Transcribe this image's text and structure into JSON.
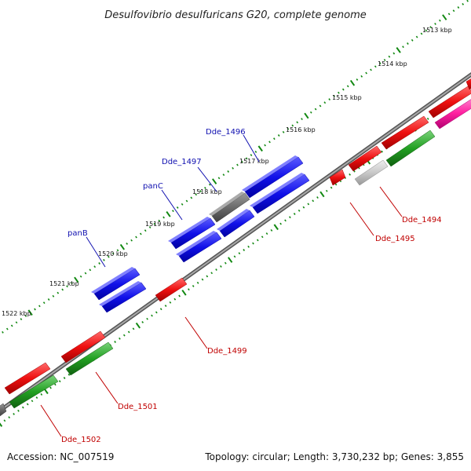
{
  "title": "Desulfovibrio desulfuricans G20, complete genome",
  "footer": {
    "accession": "Accession: NC_007519",
    "topology": "Topology: circular; Length: 3,730,232 bp; Genes: 3,855"
  },
  "scale_labels": [
    "1513 kbp",
    "1514 kbp",
    "1515 kbp",
    "1516 kbp",
    "1517 kbp",
    "1518 kbp",
    "1519 kbp",
    "1520 kbp",
    "1521 kbp",
    "1522 kbp"
  ],
  "gene_labels": {
    "dde_1496": "Dde_1496",
    "dde_1497": "Dde_1497",
    "panC": "panC",
    "panB": "panB",
    "dde_1494": "Dde_1494",
    "dde_1495": "Dde_1495",
    "dde_1499": "Dde_1499",
    "dde_1501": "Dde_1501",
    "dde_1502": "Dde_1502"
  },
  "colors": {
    "backbone": "#808080",
    "blue_gene": "#1010e8",
    "red_gene": "#ee1010",
    "green_gene": "#22a022",
    "gray_gene": "#6a6a6a",
    "light_gray_gene": "#c8c8c8",
    "magenta_gene": "#ff20a0",
    "tick_green": "#118811",
    "blue_label": "#1010b0",
    "red_label": "#c00000"
  }
}
